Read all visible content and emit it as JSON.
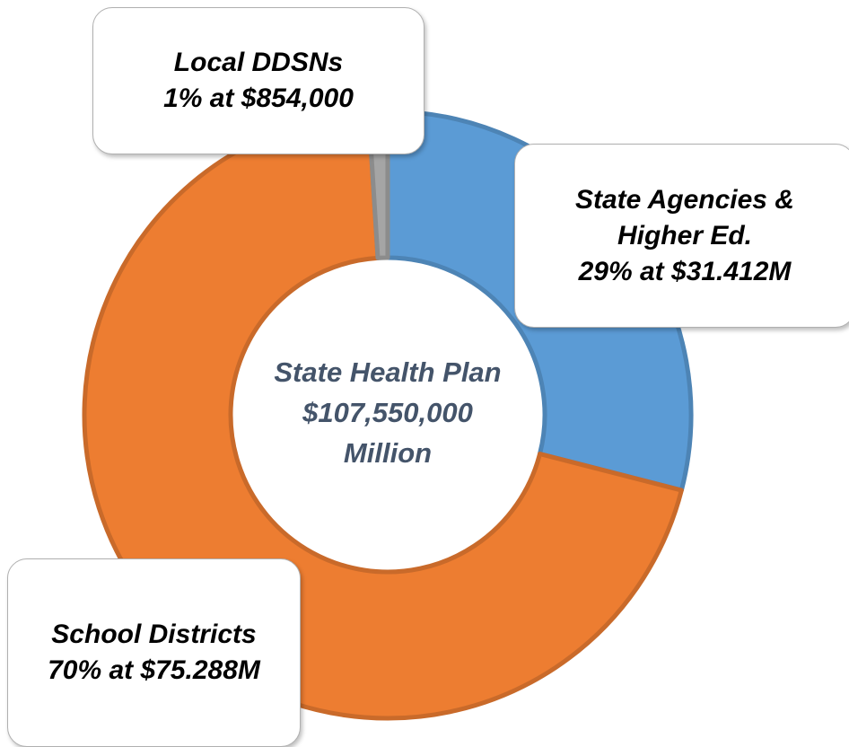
{
  "chart_data": {
    "type": "donut",
    "center_text": [
      "State Health Plan",
      "$107,550,000",
      "Million"
    ],
    "categories": [
      "State Agencies & Higher Ed.",
      "School Districts",
      "Local DDSNs"
    ],
    "values": [
      29,
      70,
      1
    ],
    "value_labels": [
      "29% at $31.412M",
      "70% at $75.288M",
      "1% at $854,000"
    ],
    "colors": [
      "#5b9bd5",
      "#ed7d31",
      "#a5a5a5"
    ]
  }
}
